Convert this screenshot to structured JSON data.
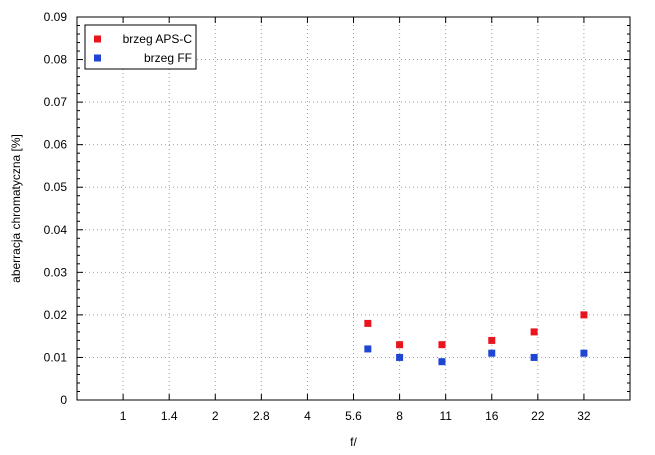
{
  "chart_data": {
    "type": "scatter",
    "xlabel": "f/",
    "ylabel": "aberracja chromatyczna [%]",
    "x_tick_labels": [
      "1",
      "1.4",
      "2",
      "2.8",
      "4",
      "5.6",
      "8",
      "11",
      "16",
      "22",
      "32"
    ],
    "x_scale": "log2",
    "xlim": [
      0.707,
      45.25
    ],
    "ylim": [
      0,
      0.09
    ],
    "y_ticks": [
      0,
      0.01,
      0.02,
      0.03,
      0.04,
      0.05,
      0.06,
      0.07,
      0.08,
      0.09
    ],
    "y_tick_labels": [
      "0",
      "0.01",
      "0.02",
      "0.03",
      "0.04",
      "0.05",
      "0.06",
      "0.07",
      "0.08",
      "0.09"
    ],
    "grid": true,
    "legend_position": "top-left",
    "series": [
      {
        "name": "brzeg APS-C",
        "color": "#e8141e",
        "points": [
          {
            "x": 6.3,
            "y": 0.018
          },
          {
            "x": 8,
            "y": 0.013
          },
          {
            "x": 11,
            "y": 0.013
          },
          {
            "x": 16,
            "y": 0.014
          },
          {
            "x": 22,
            "y": 0.016
          },
          {
            "x": 32,
            "y": 0.02
          }
        ]
      },
      {
        "name": "brzeg FF",
        "color": "#1e46d2",
        "points": [
          {
            "x": 6.3,
            "y": 0.012
          },
          {
            "x": 8,
            "y": 0.01
          },
          {
            "x": 11,
            "y": 0.009
          },
          {
            "x": 16,
            "y": 0.011
          },
          {
            "x": 22,
            "y": 0.01
          },
          {
            "x": 32,
            "y": 0.011
          }
        ]
      }
    ]
  }
}
